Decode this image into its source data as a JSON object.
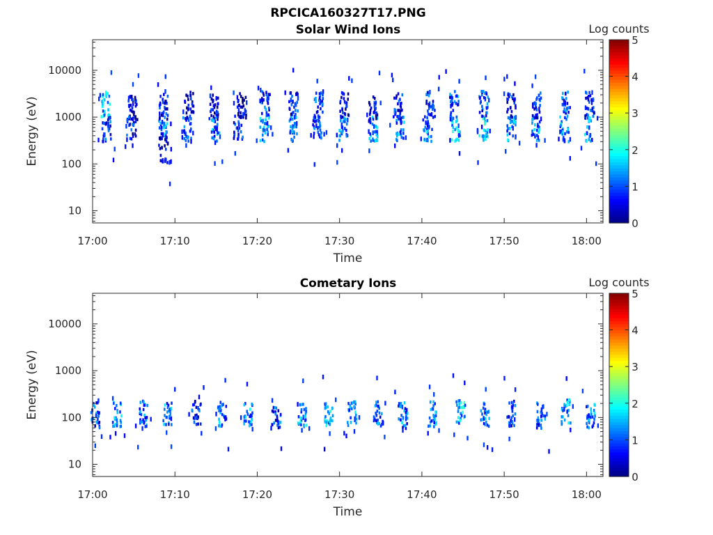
{
  "figure_title": "RPCICA160327T17.PNG",
  "chart_data": [
    {
      "type": "heatmap",
      "title": "Solar Wind Ions",
      "xlabel": "Time",
      "ylabel": "Energy (eV)",
      "x_ticks": [
        "17:00",
        "17:10",
        "17:20",
        "17:30",
        "17:40",
        "17:50",
        "18:00"
      ],
      "y_ticks": [
        "10",
        "100",
        "1000",
        "10000"
      ],
      "y_scale": "log",
      "xlim": [
        "17:00",
        "18:02"
      ],
      "ylim": [
        5.5,
        45000
      ],
      "colorbar": {
        "label": "Log counts",
        "range": [
          0,
          5
        ],
        "ticks": [
          "0",
          "1",
          "2",
          "3",
          "4",
          "5"
        ],
        "colormap": "jet"
      },
      "clusters": [
        {
          "t": 1.5,
          "e": 1900,
          "c": 2.1
        },
        {
          "t": 1.6,
          "e": 520,
          "c": 1.5
        },
        {
          "t": 4.6,
          "e": 560,
          "c": 1.3
        },
        {
          "t": 4.8,
          "e": 1500,
          "c": 1.1
        },
        {
          "t": 8.4,
          "e": 560,
          "c": 1.9
        },
        {
          "t": 8.5,
          "e": 1700,
          "c": 1.3
        },
        {
          "t": 8.5,
          "e": 200,
          "c": 1.0
        },
        {
          "t": 11.4,
          "e": 560,
          "c": 1.6
        },
        {
          "t": 11.6,
          "e": 1800,
          "c": 1.1
        },
        {
          "t": 14.8,
          "e": 560,
          "c": 1.8
        },
        {
          "t": 14.6,
          "e": 1600,
          "c": 1.1
        },
        {
          "t": 17.6,
          "e": 560,
          "c": 1.6
        },
        {
          "t": 18.0,
          "e": 1800,
          "c": 1.0
        },
        {
          "t": 20.8,
          "e": 560,
          "c": 2.1
        },
        {
          "t": 20.9,
          "e": 1900,
          "c": 1.6
        },
        {
          "t": 24.2,
          "e": 560,
          "c": 1.9
        },
        {
          "t": 24.3,
          "e": 1900,
          "c": 1.3
        },
        {
          "t": 27.2,
          "e": 560,
          "c": 1.9
        },
        {
          "t": 27.4,
          "e": 1800,
          "c": 1.5
        },
        {
          "t": 30.4,
          "e": 560,
          "c": 1.9
        },
        {
          "t": 30.5,
          "e": 1800,
          "c": 1.1
        },
        {
          "t": 34.0,
          "e": 560,
          "c": 2.0
        },
        {
          "t": 34.0,
          "e": 1500,
          "c": 1.1
        },
        {
          "t": 37.2,
          "e": 560,
          "c": 2.0
        },
        {
          "t": 37.0,
          "e": 1700,
          "c": 1.3
        },
        {
          "t": 40.6,
          "e": 560,
          "c": 2.1
        },
        {
          "t": 41.0,
          "e": 1800,
          "c": 1.5
        },
        {
          "t": 44.0,
          "e": 560,
          "c": 2.2
        },
        {
          "t": 43.8,
          "e": 1900,
          "c": 1.7
        },
        {
          "t": 47.4,
          "e": 560,
          "c": 2.2
        },
        {
          "t": 47.4,
          "e": 1900,
          "c": 1.6
        },
        {
          "t": 50.8,
          "e": 560,
          "c": 2.0
        },
        {
          "t": 50.8,
          "e": 1700,
          "c": 1.3
        },
        {
          "t": 53.8,
          "e": 560,
          "c": 1.9
        },
        {
          "t": 53.9,
          "e": 1800,
          "c": 1.4
        },
        {
          "t": 57.2,
          "e": 560,
          "c": 2.1
        },
        {
          "t": 57.4,
          "e": 1900,
          "c": 1.6
        },
        {
          "t": 60.2,
          "e": 560,
          "c": 1.9
        },
        {
          "t": 60.3,
          "e": 1900,
          "c": 1.5
        }
      ]
    },
    {
      "type": "heatmap",
      "title": "Cometary Ions",
      "xlabel": "Time",
      "ylabel": "Energy (eV)",
      "x_ticks": [
        "17:00",
        "17:10",
        "17:20",
        "17:30",
        "17:40",
        "17:50",
        "18:00"
      ],
      "y_ticks": [
        "10",
        "100",
        "1000",
        "10000"
      ],
      "y_scale": "log",
      "xlim": [
        "17:00",
        "18:02"
      ],
      "ylim": [
        5.5,
        45000
      ],
      "colorbar": {
        "label": "Log counts",
        "range": [
          0,
          5
        ],
        "ticks": [
          "0",
          "1",
          "2",
          "3",
          "4",
          "5"
        ],
        "colormap": "jet"
      },
      "clusters": [
        {
          "t": 0.2,
          "e": 110,
          "c": 1.6
        },
        {
          "t": 2.9,
          "e": 120,
          "c": 2.0
        },
        {
          "t": 6.1,
          "e": 120,
          "c": 1.8
        },
        {
          "t": 9.0,
          "e": 110,
          "c": 1.9
        },
        {
          "t": 12.5,
          "e": 120,
          "c": 1.4
        },
        {
          "t": 15.6,
          "e": 120,
          "c": 1.8
        },
        {
          "t": 18.8,
          "e": 120,
          "c": 1.9
        },
        {
          "t": 22.2,
          "e": 110,
          "c": 1.6
        },
        {
          "t": 25.4,
          "e": 120,
          "c": 1.9
        },
        {
          "t": 28.6,
          "e": 120,
          "c": 2.1
        },
        {
          "t": 31.4,
          "e": 120,
          "c": 2.0
        },
        {
          "t": 34.6,
          "e": 120,
          "c": 1.7
        },
        {
          "t": 37.6,
          "e": 110,
          "c": 1.8
        },
        {
          "t": 41.2,
          "e": 120,
          "c": 2.0
        },
        {
          "t": 44.6,
          "e": 130,
          "c": 2.2
        },
        {
          "t": 47.6,
          "e": 120,
          "c": 1.8
        },
        {
          "t": 50.8,
          "e": 120,
          "c": 1.6
        },
        {
          "t": 54.4,
          "e": 110,
          "c": 1.7
        },
        {
          "t": 57.4,
          "e": 130,
          "c": 2.1
        },
        {
          "t": 60.4,
          "e": 110,
          "c": 1.9
        }
      ]
    }
  ]
}
